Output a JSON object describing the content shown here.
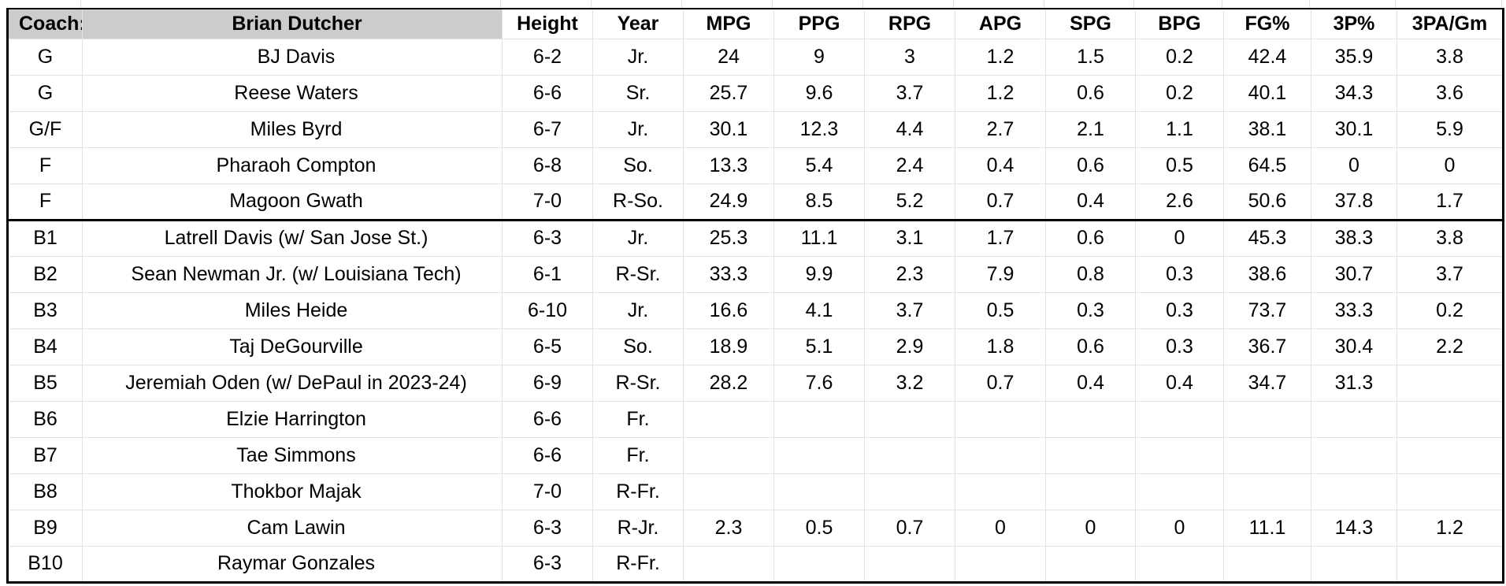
{
  "table": {
    "coach_label": "Coach:",
    "coach_name": "Brian Dutcher",
    "stat_columns": [
      "Height",
      "Year",
      "MPG",
      "PPG",
      "RPG",
      "APG",
      "SPG",
      "BPG",
      "FG%",
      "3P%",
      "3PA/Gm"
    ],
    "rows": [
      {
        "pos": "G",
        "name": "BJ Davis",
        "stats": [
          "6-2",
          "Jr.",
          "24",
          "9",
          "3",
          "1.2",
          "1.5",
          "0.2",
          "42.4",
          "35.9",
          "3.8"
        ]
      },
      {
        "pos": "G",
        "name": "Reese Waters",
        "stats": [
          "6-6",
          "Sr.",
          "25.7",
          "9.6",
          "3.7",
          "1.2",
          "0.6",
          "0.2",
          "40.1",
          "34.3",
          "3.6"
        ]
      },
      {
        "pos": "G/F",
        "name": "Miles Byrd",
        "stats": [
          "6-7",
          "Jr.",
          "30.1",
          "12.3",
          "4.4",
          "2.7",
          "2.1",
          "1.1",
          "38.1",
          "30.1",
          "5.9"
        ]
      },
      {
        "pos": "F",
        "name": "Pharaoh Compton",
        "stats": [
          "6-8",
          "So.",
          "13.3",
          "5.4",
          "2.4",
          "0.4",
          "0.6",
          "0.5",
          "64.5",
          "0",
          "0"
        ]
      },
      {
        "pos": "F",
        "name": "Magoon Gwath",
        "stats": [
          "7-0",
          "R-So.",
          "24.9",
          "8.5",
          "5.2",
          "0.7",
          "0.4",
          "2.6",
          "50.6",
          "37.8",
          "1.7"
        ],
        "divider_below": true
      },
      {
        "pos": "B1",
        "name": "Latrell Davis (w/ San Jose St.)",
        "stats": [
          "6-3",
          "Jr.",
          "25.3",
          "11.1",
          "3.1",
          "1.7",
          "0.6",
          "0",
          "45.3",
          "38.3",
          "3.8"
        ]
      },
      {
        "pos": "B2",
        "name": "Sean Newman Jr. (w/ Louisiana Tech)",
        "stats": [
          "6-1",
          "R-Sr.",
          "33.3",
          "9.9",
          "2.3",
          "7.9",
          "0.8",
          "0.3",
          "38.6",
          "30.7",
          "3.7"
        ]
      },
      {
        "pos": "B3",
        "name": "Miles Heide",
        "stats": [
          "6-10",
          "Jr.",
          "16.6",
          "4.1",
          "3.7",
          "0.5",
          "0.3",
          "0.3",
          "73.7",
          "33.3",
          "0.2"
        ]
      },
      {
        "pos": "B4",
        "name": "Taj DeGourville",
        "stats": [
          "6-5",
          "So.",
          "18.9",
          "5.1",
          "2.9",
          "1.8",
          "0.6",
          "0.3",
          "36.7",
          "30.4",
          "2.2"
        ]
      },
      {
        "pos": "B5",
        "name": "Jeremiah Oden (w/ DePaul in 2023-24)",
        "stats": [
          "6-9",
          "R-Sr.",
          "28.2",
          "7.6",
          "3.2",
          "0.7",
          "0.4",
          "0.4",
          "34.7",
          "31.3",
          ""
        ]
      },
      {
        "pos": "B6",
        "name": "Elzie Harrington",
        "stats": [
          "6-6",
          "Fr.",
          "",
          "",
          "",
          "",
          "",
          "",
          "",
          "",
          ""
        ]
      },
      {
        "pos": "B7",
        "name": "Tae Simmons",
        "stats": [
          "6-6",
          "Fr.",
          "",
          "",
          "",
          "",
          "",
          "",
          "",
          "",
          ""
        ]
      },
      {
        "pos": "B8",
        "name": "Thokbor Majak",
        "stats": [
          "7-0",
          "R-Fr.",
          "",
          "",
          "",
          "",
          "",
          "",
          "",
          "",
          ""
        ]
      },
      {
        "pos": "B9",
        "name": "Cam Lawin",
        "stats": [
          "6-3",
          "R-Jr.",
          "2.3",
          "0.5",
          "0.7",
          "0",
          "0",
          "0",
          "11.1",
          "14.3",
          "1.2"
        ]
      },
      {
        "pos": "B10",
        "name": "Raymar Gonzales",
        "stats": [
          "6-3",
          "R-Fr.",
          "",
          "",
          "",
          "",
          "",
          "",
          "",
          "",
          ""
        ]
      }
    ]
  },
  "colors": {
    "header_bg": "#cccccc",
    "gridline": "#e2e2e2",
    "border": "#000000",
    "background": "#ffffff"
  }
}
